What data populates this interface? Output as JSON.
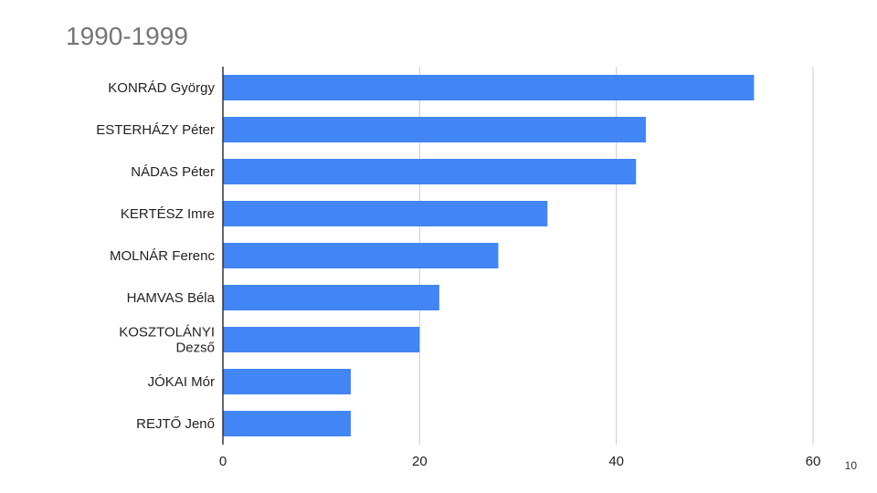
{
  "slide": {
    "number": "10"
  },
  "chart_data": {
    "type": "bar",
    "orientation": "horizontal",
    "title": "1990-1999",
    "categories": [
      [
        "KONRÁD György"
      ],
      [
        "ESTERHÁZY Péter"
      ],
      [
        "NÁDAS Péter"
      ],
      [
        "KERTÉSZ Imre"
      ],
      [
        "MOLNÁR Ferenc"
      ],
      [
        "HAMVAS Béla"
      ],
      [
        "KOSZTOLÁNYI",
        "Dezső"
      ],
      [
        "JÓKAI Mór"
      ],
      [
        "REJTŐ Jenő"
      ]
    ],
    "values": [
      54,
      43,
      42,
      33,
      28,
      22,
      20,
      13,
      13
    ],
    "xlim": [
      0,
      60
    ],
    "xticks": [
      "0",
      "20",
      "40",
      "60"
    ],
    "grid": true,
    "bar_color": "#4285f4",
    "grid_color": "#cccccc",
    "axis_color": "#333333"
  }
}
